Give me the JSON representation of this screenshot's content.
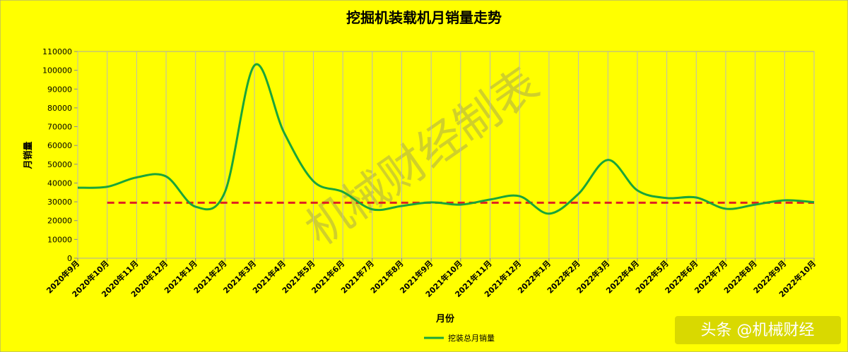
{
  "chart_data": {
    "type": "line",
    "title": "挖掘机装载机月销量走势",
    "x_label": "月份",
    "y_label": "月销量",
    "categories": [
      "2020年9月",
      "2020年10月",
      "2020年11月",
      "2020年12月",
      "2021年1月",
      "2021年2月",
      "2021年3月",
      "2021年4月",
      "2021年5月",
      "2021年6月",
      "2021年7月",
      "2021年8月",
      "2021年9月",
      "2021年10月",
      "2021年11月",
      "2021年12月",
      "2022年1月",
      "2022年2月",
      "2022年3月",
      "2022年4月",
      "2022年5月",
      "2022年6月",
      "2022年7月",
      "2022年8月",
      "2022年9月",
      "2022年10月"
    ],
    "series": [
      {
        "name": "挖装总月销量",
        "color": "#1aa53a",
        "values": [
          37500,
          38000,
          43000,
          43500,
          27400,
          35300,
          102600,
          67000,
          41000,
          35300,
          26000,
          27800,
          29700,
          28500,
          31200,
          33000,
          23700,
          34200,
          52300,
          36100,
          32000,
          32300,
          26300,
          28500,
          30800,
          29800
        ]
      }
    ],
    "reference_line": {
      "value": 29500,
      "color": "#e02020"
    },
    "ylim": [
      0,
      110000
    ],
    "yticks": [
      0,
      10000,
      20000,
      30000,
      40000,
      50000,
      60000,
      70000,
      80000,
      90000,
      100000,
      110000
    ],
    "grid": true,
    "legend": "bottom",
    "watermark": "机械财经制表",
    "source": "头条 @机械财经"
  }
}
